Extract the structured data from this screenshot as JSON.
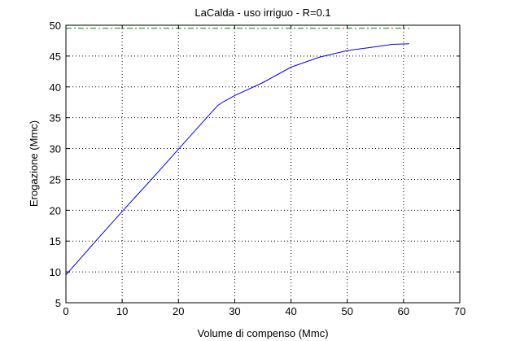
{
  "chart_data": {
    "type": "line",
    "title": "LaCalda  -  uso irriguo  -   R=0.1",
    "xlabel": "Volume di compenso (Mmc)",
    "ylabel": "Erogazione (Mmc)",
    "xlim": [
      0,
      70
    ],
    "ylim": [
      5,
      50
    ],
    "xticks": [
      0,
      10,
      20,
      30,
      40,
      50,
      60,
      70
    ],
    "yticks": [
      5,
      10,
      15,
      20,
      25,
      30,
      35,
      40,
      45,
      50
    ],
    "grid": true,
    "series": [
      {
        "color": "#0000ff",
        "style": "solid",
        "x": [
          0,
          5,
          10,
          15,
          20,
          25,
          27,
          28,
          30,
          35,
          40,
          45,
          50,
          55,
          58,
          61
        ],
        "y": [
          9.5,
          14.7,
          19.8,
          24.8,
          29.9,
          35,
          37,
          37.6,
          38.6,
          40.7,
          43.2,
          44.8,
          45.9,
          46.5,
          46.9,
          47
        ]
      },
      {
        "color": "#008000",
        "style": "dash-dot",
        "x": [
          0,
          61
        ],
        "y": [
          49.5,
          49.5
        ]
      }
    ]
  }
}
